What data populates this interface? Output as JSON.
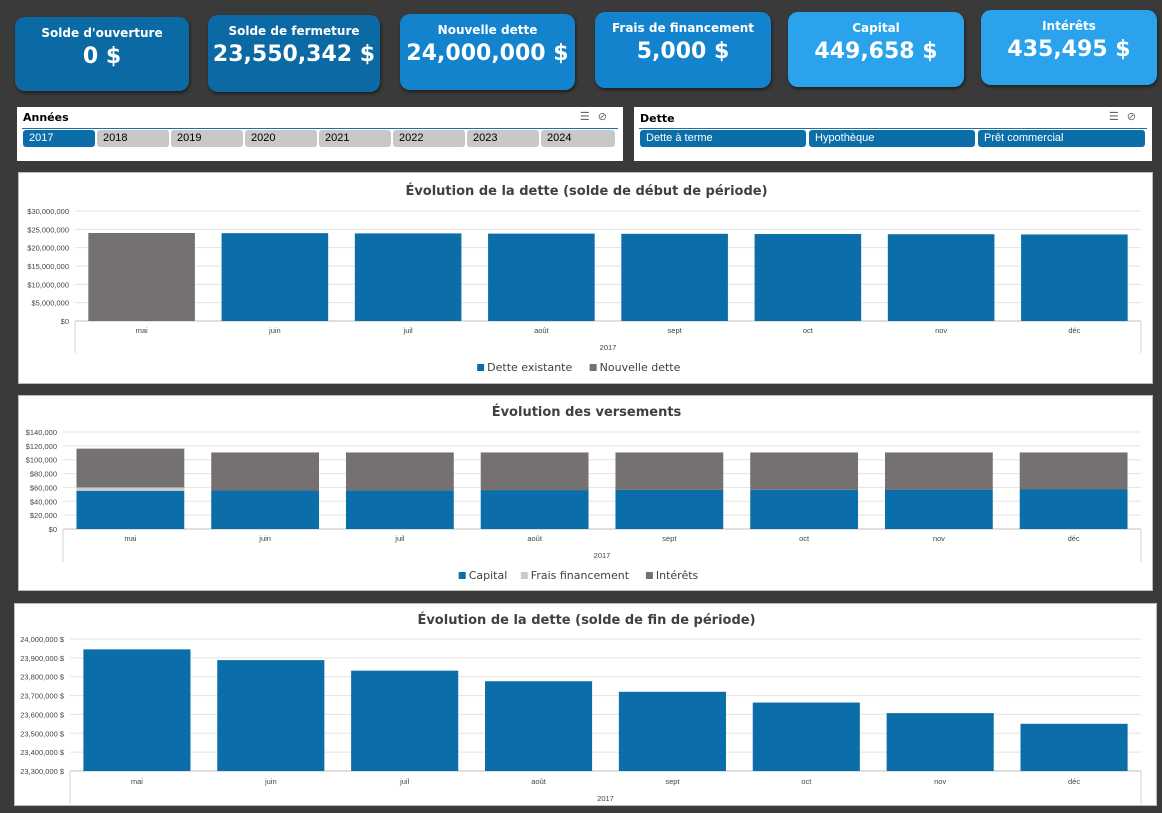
{
  "kpis": [
    {
      "label": "Solde d'ouverture",
      "value": "0 $",
      "color": "#0b6aa3"
    },
    {
      "label": "Solde de fermeture",
      "value": "23,550,342 $",
      "color": "#0b6aa3"
    },
    {
      "label": "Nouvelle dette",
      "value": "24,000,000 $",
      "color": "#1283cc"
    },
    {
      "label": "Frais de financement",
      "value": "5,000 $",
      "color": "#1283cc"
    },
    {
      "label": "Capital",
      "value": "449,658 $",
      "color": "#2aa3ec"
    },
    {
      "label": "Intérêts",
      "value": "435,495 $",
      "color": "#2aa3ec"
    }
  ],
  "slicer_years": {
    "title": "Années",
    "items": [
      {
        "label": "2017",
        "selected": true
      },
      {
        "label": "2018",
        "selected": false
      },
      {
        "label": "2019",
        "selected": false
      },
      {
        "label": "2020",
        "selected": false
      },
      {
        "label": "2021",
        "selected": false
      },
      {
        "label": "2022",
        "selected": false
      },
      {
        "label": "2023",
        "selected": false
      },
      {
        "label": "2024",
        "selected": false
      }
    ]
  },
  "slicer_debt": {
    "title": "Dette",
    "items": [
      {
        "label": "Dette à terme",
        "selected": true
      },
      {
        "label": "Hypothèque",
        "selected": true
      },
      {
        "label": "Prêt commercial",
        "selected": true
      }
    ]
  },
  "colors": {
    "blue": "#0b6ea8",
    "gray": "#767171",
    "light": "#c9c9c9"
  },
  "chart_data": [
    {
      "type": "bar",
      "stacked": true,
      "title": "Évolution de la dette (solde de début de période)",
      "categories": [
        "mai",
        "juin",
        "juil",
        "août",
        "sept",
        "oct",
        "nov",
        "déc"
      ],
      "group_label": "2017",
      "ylim": [
        0,
        30000000
      ],
      "yticks": [
        "$0",
        "$5,000,000",
        "$10,000,000",
        "$15,000,000",
        "$20,000,000",
        "$25,000,000",
        "$30,000,000"
      ],
      "series": [
        {
          "name": "Dette existante",
          "values": [
            0,
            23950000,
            23890000,
            23830000,
            23780000,
            23720000,
            23660000,
            23600000
          ]
        },
        {
          "name": "Nouvelle dette",
          "values": [
            24000000,
            0,
            0,
            0,
            0,
            0,
            0,
            0
          ]
        }
      ],
      "legend": "bottom",
      "grid": true
    },
    {
      "type": "bar",
      "stacked": true,
      "title": "Évolution des versements",
      "categories": [
        "mai",
        "juin",
        "juil",
        "août",
        "sept",
        "oct",
        "nov",
        "déc"
      ],
      "group_label": "2017",
      "ylim": [
        0,
        140000
      ],
      "yticks": [
        "$0",
        "$20,000",
        "$40,000",
        "$60,000",
        "$80,000",
        "$100,000",
        "$120,000",
        "$140,000"
      ],
      "series": [
        {
          "name": "Capital",
          "values": [
            55000,
            55500,
            56000,
            56200,
            56400,
            56600,
            56800,
            57000
          ]
        },
        {
          "name": "Frais financement",
          "values": [
            5000,
            0,
            0,
            0,
            0,
            0,
            0,
            0
          ]
        },
        {
          "name": "Intérêts",
          "values": [
            56000,
            55000,
            54500,
            54300,
            54100,
            53900,
            53700,
            53500
          ]
        }
      ],
      "legend": "bottom",
      "grid": true
    },
    {
      "type": "bar",
      "stacked": false,
      "title": "Évolution de la dette (solde de fin de période)",
      "categories": [
        "mai",
        "juin",
        "juil",
        "août",
        "sept",
        "oct",
        "nov",
        "déc"
      ],
      "group_label": "2017",
      "ylim": [
        23300000,
        24000000
      ],
      "yticks": [
        "23,300,000 $",
        "23,400,000 $",
        "23,500,000 $",
        "23,600,000 $",
        "23,700,000 $",
        "23,800,000 $",
        "23,900,000 $",
        "24,000,000 $"
      ],
      "series": [
        {
          "name": "",
          "values": [
            23945000,
            23888000,
            23832000,
            23776000,
            23720000,
            23663000,
            23607000,
            23550342
          ]
        }
      ],
      "legend": "none",
      "grid": true
    }
  ]
}
